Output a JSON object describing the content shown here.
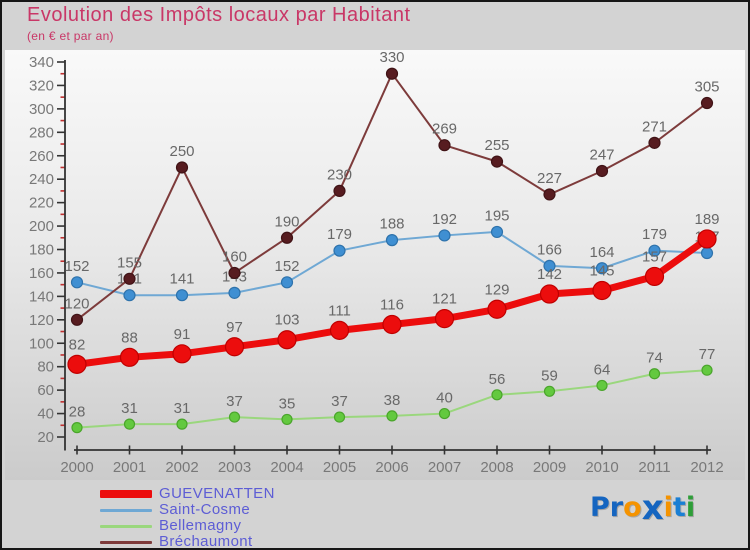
{
  "chart_data": {
    "type": "line",
    "title": "Evolution des Impôts locaux par Habitant",
    "subtitle": "(en € et par an)",
    "x": [
      2000,
      2001,
      2002,
      2003,
      2004,
      2005,
      2006,
      2007,
      2008,
      2009,
      2010,
      2011,
      2012
    ],
    "ylim": [
      20,
      340
    ],
    "ytick_step": 20,
    "yminor_step": 10,
    "grid": false,
    "legend_position": "bottom-left",
    "xlabel": "",
    "ylabel": "",
    "series": [
      {
        "name": "GUEVENATTEN",
        "values": [
          82,
          88,
          91,
          97,
          103,
          111,
          116,
          121,
          129,
          142,
          145,
          157,
          189
        ],
        "line_color": "#ec0d0d",
        "marker_fill": "#ec0d0d",
        "marker_stroke": "#c00000",
        "line_width": 7,
        "marker_radius": 9
      },
      {
        "name": "Saint-Cosme",
        "values": [
          152,
          141,
          141,
          143,
          152,
          179,
          188,
          192,
          195,
          166,
          164,
          179,
          177
        ],
        "line_color": "#6fa8d4",
        "marker_fill": "#3f8fd2",
        "marker_stroke": "#2e72ab",
        "line_width": 2,
        "marker_radius": 5.5
      },
      {
        "name": "Bellemagny",
        "values": [
          28,
          31,
          31,
          37,
          35,
          37,
          38,
          40,
          56,
          59,
          64,
          74,
          77
        ],
        "line_color": "#9ad77d",
        "marker_fill": "#63c93f",
        "marker_stroke": "#4aa52b",
        "line_width": 2,
        "marker_radius": 5
      },
      {
        "name": "Bréchaumont",
        "values": [
          120,
          155,
          250,
          160,
          190,
          230,
          330,
          269,
          255,
          227,
          247,
          271,
          305
        ],
        "line_color": "#7d3b3b",
        "marker_fill": "#571c20",
        "marker_stroke": "#401316",
        "line_width": 2,
        "marker_radius": 5.5
      }
    ],
    "label_color": "#686868",
    "axis_color": "#333333",
    "tick_label_color": "#787878",
    "minor_tick_color": "#c03030"
  },
  "legend": {
    "text_color": "#5d5dd5"
  },
  "logo": {
    "text": "Proxiti",
    "letters": [
      {
        "ch": "P",
        "color": "#1565c0"
      },
      {
        "ch": "r",
        "color": "#1565c0"
      },
      {
        "ch": "o",
        "color": "#f59300"
      },
      {
        "ch": "x",
        "color": "#1565c0",
        "big": true
      },
      {
        "ch": "i",
        "color": "#f59300"
      },
      {
        "ch": "t",
        "color": "#1a7fd4"
      },
      {
        "ch": "i",
        "color": "#2e9e38"
      }
    ]
  }
}
